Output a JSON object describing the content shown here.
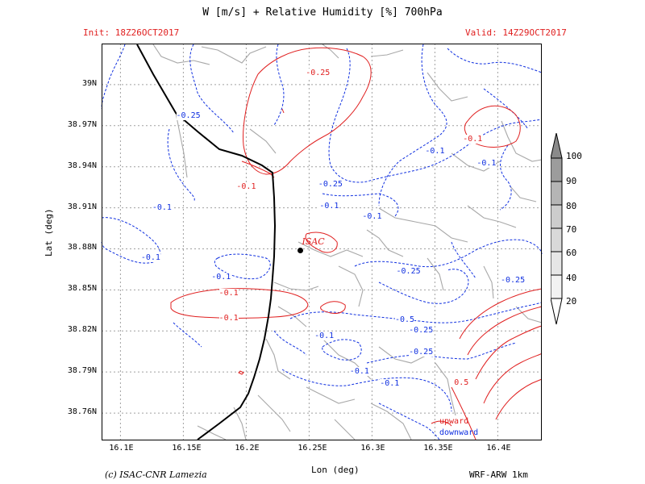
{
  "header": {
    "title": "W [m/s] + Relative Humidity [%] 700hPa",
    "init": "Init: 18Z26OCT2017",
    "valid": "Valid: 14Z29OCT2017"
  },
  "axes": {
    "xlabel": "Lon (deg)",
    "ylabel": "Lat (deg)",
    "xticks": [
      "16.1E",
      "16.15E",
      "16.2E",
      "16.25E",
      "16.3E",
      "16.35E",
      "16.4E"
    ],
    "yticks": [
      "39N",
      "38.97N",
      "38.94N",
      "38.91N",
      "38.88N",
      "38.85N",
      "38.82N",
      "38.79N",
      "38.76N"
    ],
    "xlim": [
      16.085,
      16.435
    ],
    "ylim": [
      38.74,
      39.03
    ]
  },
  "contour_labels": [
    {
      "text": "-0.25",
      "lon": 16.255,
      "lat": 39.008,
      "kind": "upward"
    },
    {
      "text": "-0.25",
      "lon": 16.152,
      "lat": 38.977,
      "kind": "downward"
    },
    {
      "text": "-0.1",
      "lon": 16.38,
      "lat": 38.96,
      "kind": "upward"
    },
    {
      "text": "-0.1",
      "lon": 16.35,
      "lat": 38.951,
      "kind": "downward"
    },
    {
      "text": "-0.1",
      "lon": 16.391,
      "lat": 38.942,
      "kind": "downward"
    },
    {
      "text": "-0.25",
      "lon": 16.265,
      "lat": 38.927,
      "kind": "downward"
    },
    {
      "text": "-0.1",
      "lon": 16.2,
      "lat": 38.925,
      "kind": "upward"
    },
    {
      "text": "-0.1",
      "lon": 16.133,
      "lat": 38.91,
      "kind": "downward"
    },
    {
      "text": "-0.1",
      "lon": 16.266,
      "lat": 38.911,
      "kind": "downward"
    },
    {
      "text": "-0.1",
      "lon": 16.3,
      "lat": 38.903,
      "kind": "downward"
    },
    {
      "text": "-0.1",
      "lon": 16.124,
      "lat": 38.873,
      "kind": "downward"
    },
    {
      "text": "-0.25",
      "lon": 16.327,
      "lat": 38.863,
      "kind": "downward"
    },
    {
      "text": "-0.1",
      "lon": 16.18,
      "lat": 38.859,
      "kind": "downward"
    },
    {
      "text": "-0.25",
      "lon": 16.41,
      "lat": 38.857,
      "kind": "downward"
    },
    {
      "text": "-0.1",
      "lon": 16.186,
      "lat": 38.847,
      "kind": "upward"
    },
    {
      "text": "-0.1",
      "lon": 16.186,
      "lat": 38.829,
      "kind": "upward"
    },
    {
      "text": "-0.5",
      "lon": 16.326,
      "lat": 38.828,
      "kind": "downward"
    },
    {
      "text": "-0.25",
      "lon": 16.337,
      "lat": 38.82,
      "kind": "downward"
    },
    {
      "text": "-0.1",
      "lon": 16.262,
      "lat": 38.816,
      "kind": "downward"
    },
    {
      "text": "-0.25",
      "lon": 16.337,
      "lat": 38.804,
      "kind": "downward"
    },
    {
      "text": "-0.1",
      "lon": 16.29,
      "lat": 38.79,
      "kind": "downward"
    },
    {
      "text": "-0.1",
      "lon": 16.314,
      "lat": 38.781,
      "kind": "downward"
    },
    {
      "text": "0.5",
      "lon": 16.373,
      "lat": 38.782,
      "kind": "upward"
    }
  ],
  "site": {
    "name": "ISAC",
    "lon": 16.243,
    "lat": 38.879
  },
  "legend": {
    "upward": "upward",
    "downward": "downward"
  },
  "colorbar": {
    "levels": [
      "20",
      "40",
      "60",
      "70",
      "80",
      "90",
      "100"
    ]
  },
  "footer": {
    "credit": "(c) ISAC-CNR Lamezia",
    "model": "WRF-ARW 1km"
  },
  "colors": {
    "upward": "#e02020",
    "downward": "#1030e0",
    "coast": "#000000",
    "terrain": "#a0a0a0",
    "grid": "#a0a0a0"
  }
}
